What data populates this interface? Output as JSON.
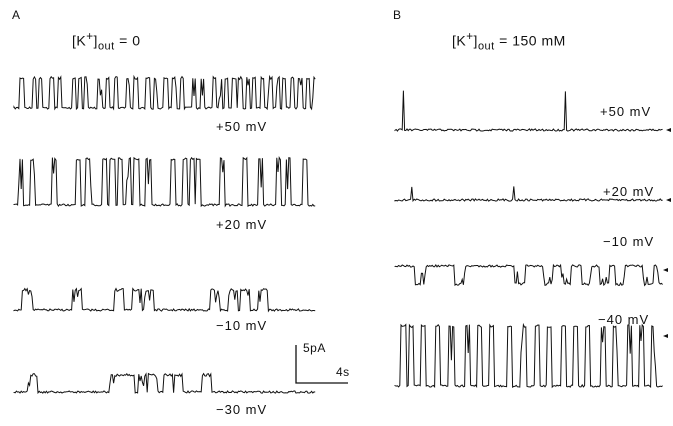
{
  "panels": [
    {
      "letter": "A",
      "condition": {
        "prefix": "[K",
        "sup": "+",
        "mid": "]",
        "sub": "out",
        "value": " = 0"
      },
      "traces": [
        {
          "label": "+50 mV",
          "events": [
            6,
            18,
            24,
            36,
            44,
            58,
            64,
            70,
            84,
            92,
            100,
            112,
            120,
            132,
            140,
            150,
            158,
            166,
            178,
            186,
            198,
            204,
            210,
            218,
            224,
            232,
            238,
            246,
            254,
            262,
            268,
            276,
            284,
            292,
            298,
            304,
            312
          ]
        },
        {
          "label": "+20 mV",
          "events": [
            4,
            16,
            38,
            62,
            72,
            88,
            96,
            104,
            112,
            120,
            132,
            156,
            168,
            176,
            182,
            206,
            228,
            244,
            262,
            272,
            288
          ]
        },
        {
          "label": "−10 mV",
          "events": [
            8,
            58,
            100,
            118,
            130,
            196,
            214,
            226,
            244
          ]
        },
        {
          "label": "−30 mV",
          "events": [
            14,
            96,
            104,
            112,
            124,
            134,
            150,
            160,
            188
          ]
        }
      ]
    },
    {
      "letter": "B",
      "condition": {
        "prefix": "[K",
        "sup": "+",
        "mid": "]",
        "sub": "out",
        "value": " = 150 mM"
      },
      "traces": [
        {
          "label": "+50 mV",
          "events": [
            8,
            170
          ]
        },
        {
          "label": "+20 mV",
          "events": [
            16,
            118,
            222,
            258
          ]
        },
        {
          "label": "−10 mV",
          "events": [
            20,
            60,
            120,
            148,
            166,
            186,
            204,
            220,
            248,
            262
          ]
        },
        {
          "label": "−40 mV",
          "events": [
            6,
            14,
            26,
            40,
            54,
            70,
            82,
            94,
            112,
            126,
            140,
            152,
            166,
            178,
            190,
            206,
            218,
            232,
            244,
            256,
            270,
            284
          ]
        }
      ]
    }
  ],
  "scale_bar": {
    "current": "5pA",
    "time": "4s"
  }
}
